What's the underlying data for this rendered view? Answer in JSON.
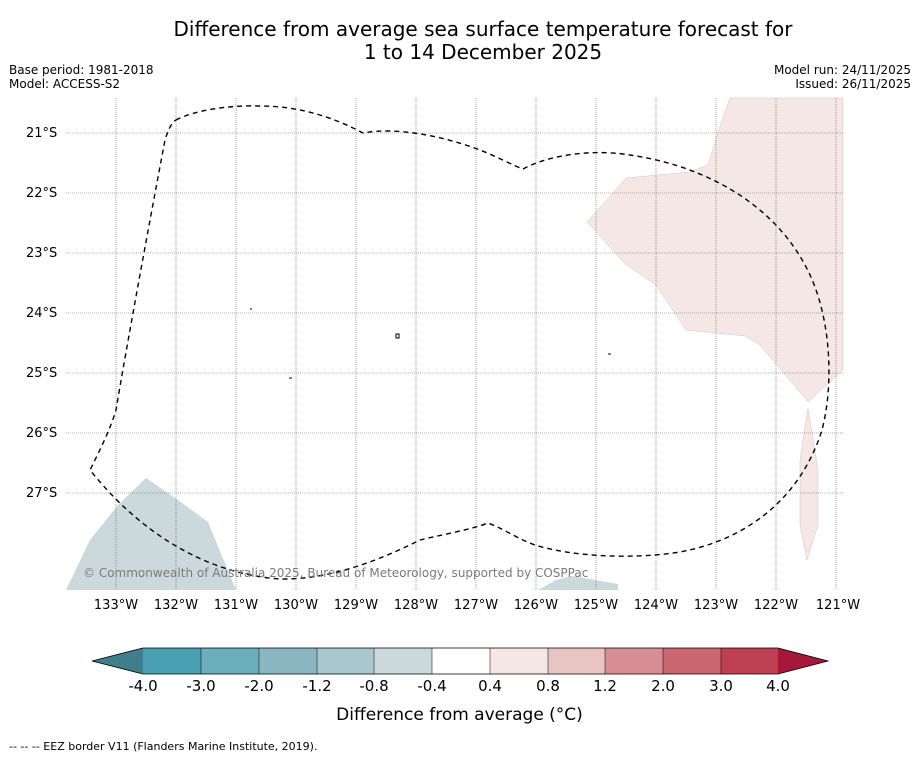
{
  "title": {
    "line1": "Difference from average sea surface temperature forecast for",
    "line2": "1 to 14 December 2025"
  },
  "meta": {
    "base_period": "Base period: 1981-2018",
    "model": "Model: ACCESS-S2",
    "model_run": "Model run: 24/11/2025",
    "issued": "Issued: 26/11/2025"
  },
  "map": {
    "latitude_labels": [
      "21°S",
      "22°S",
      "23°S",
      "24°S",
      "25°S",
      "26°S",
      "27°S"
    ],
    "longitude_labels": [
      "133°W",
      "132°W",
      "131°W",
      "130°W",
      "129°W",
      "128°W",
      "127°W",
      "126°W",
      "125°W",
      "124°W",
      "123°W",
      "122°W",
      "121°W"
    ],
    "copyright": "© Commonwealth of Australia 2025, Bureau of Meteorology, supported by COSPPac",
    "colors": {
      "warm_anomaly": "#f4e7e6",
      "cool_anomaly": "#cbd9dd",
      "eez_border": "#000000",
      "gridline": "#666666"
    }
  },
  "colorbar": {
    "ticks": [
      "-4.0",
      "-3.0",
      "-2.0",
      "-1.2",
      "-0.8",
      "-0.4",
      "0.4",
      "0.8",
      "1.2",
      "2.0",
      "3.0",
      "4.0"
    ],
    "colors": [
      "#3f7e8a",
      "#48a0b2",
      "#6aaebb",
      "#8ab7c2",
      "#a8c8ce",
      "#cbd9dd",
      "#ffffff",
      "#f4e7e6",
      "#e8c4c2",
      "#d78d94",
      "#c96670",
      "#bd4152",
      "#a6183a"
    ],
    "label": "Difference from average (°C)"
  },
  "footnote": "--  --  -- EEZ border V11 (Flanders Marine Institute, 2019)."
}
